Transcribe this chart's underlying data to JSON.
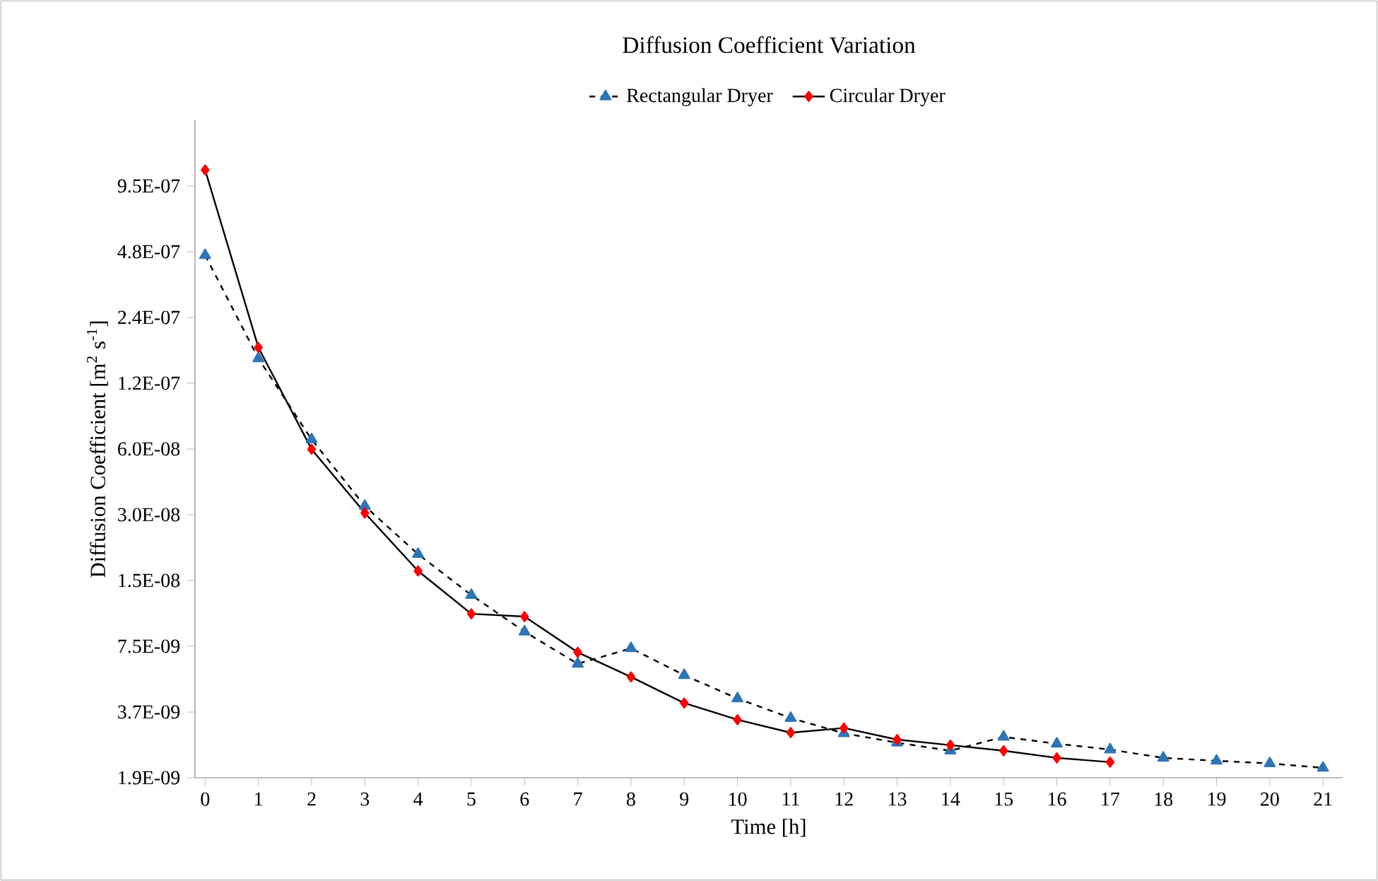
{
  "chart_data": {
    "type": "line",
    "title": "Diffusion Coefficient Variation",
    "xlabel": "Time [h]",
    "ylabel": "Diffusion Coefficient [m$^{2}$ s$^{-1}$]",
    "categories": [
      "0",
      "1",
      "2",
      "3",
      "4",
      "5",
      "6",
      "7",
      "8",
      "9",
      "10",
      "11",
      "12",
      "13",
      "14",
      "15",
      "16",
      "17",
      "18",
      "19",
      "20",
      "21"
    ],
    "log": "y",
    "ylim": [
      1.865e-09,
      1.91e-06
    ],
    "yticks": [
      {
        "value": 1.865e-09,
        "label": "1.9E-09"
      },
      {
        "value": 3.73e-09,
        "label": "3.7E-09"
      },
      {
        "value": 7.46e-09,
        "label": "7.5E-09"
      },
      {
        "value": 1.492e-08,
        "label": "1.5E-08"
      },
      {
        "value": 2.984e-08,
        "label": "3.0E-08"
      },
      {
        "value": 5.968e-08,
        "label": "6.0E-08"
      },
      {
        "value": 1.1936e-07,
        "label": "1.2E-07"
      },
      {
        "value": 2.3872e-07,
        "label": "2.4E-07"
      },
      {
        "value": 4.7744e-07,
        "label": "4.8E-07"
      },
      {
        "value": 9.5488e-07,
        "label": "9.5E-07"
      }
    ],
    "grid": false,
    "legend": "top",
    "series": [
      {
        "name": "Rectangular Dryer",
        "color": "#2e75b6",
        "marker": "triangle",
        "line_style": "dashed",
        "values": [
          4.6e-07,
          1.55e-07,
          6.6e-08,
          3.27e-08,
          1.97e-08,
          1.28e-08,
          8.7e-09,
          6.2e-09,
          7.3e-09,
          5.5e-09,
          4.3e-09,
          3.5e-09,
          2.98e-09,
          2.7e-09,
          2.48e-09,
          2.87e-09,
          2.67e-09,
          2.51e-09,
          2.3e-09,
          2.23e-09,
          2.17e-09,
          2.07e-09
        ]
      },
      {
        "name": "Circular Dryer",
        "color": "#ff0000",
        "marker": "diamond",
        "line_style": "solid",
        "values": [
          1.13e-06,
          1.74e-07,
          5.95e-08,
          3.04e-08,
          1.65e-08,
          1.05e-08,
          1.02e-08,
          7e-09,
          5.4e-09,
          4.1e-09,
          3.44e-09,
          3e-09,
          3.15e-09,
          2.79e-09,
          2.63e-09,
          2.48e-09,
          2.3e-09,
          2.2e-09,
          null,
          null,
          null,
          null
        ]
      }
    ]
  }
}
